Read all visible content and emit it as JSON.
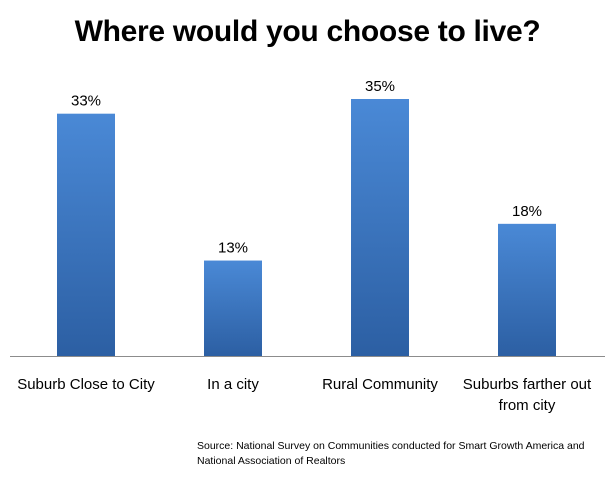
{
  "chart_data": {
    "type": "bar",
    "title": "Where would you choose to live?",
    "categories": [
      "Suburb Close to City",
      "In a city",
      "Rural Community",
      "Suburbs farther out from city"
    ],
    "values": [
      33,
      13,
      35,
      18
    ],
    "data_labels": [
      "33%",
      "13%",
      "35%",
      "18%"
    ],
    "unit": "%",
    "ylim": [
      0,
      35
    ],
    "xlabel": "",
    "ylabel": "",
    "grid": false,
    "legend": "none",
    "bar_color_top": "#4a89d6",
    "bar_color_bottom": "#2c5fa3",
    "axis_color": "#8c8c8c"
  },
  "source": {
    "text": "Source:  National Survey on Communities conducted for Smart Growth America and National Association of Realtors"
  }
}
